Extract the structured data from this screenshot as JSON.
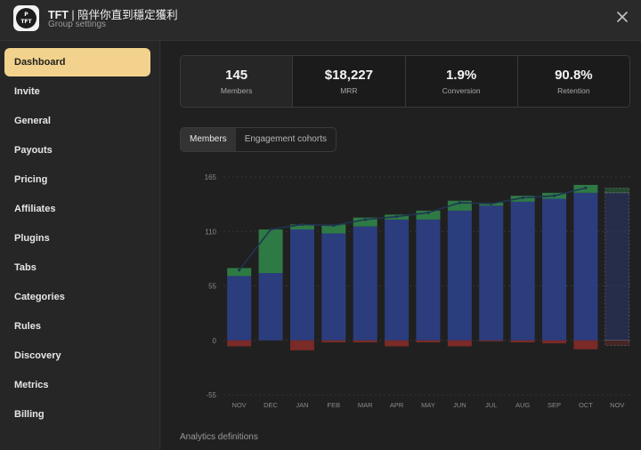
{
  "header": {
    "title": "TFT",
    "title_suffix": " | 陪伴你直到穩定獲利",
    "subtitle": "Group settings",
    "logo_text": [
      "P",
      "TFT"
    ]
  },
  "sidebar": {
    "items": [
      {
        "label": "Dashboard",
        "active": true
      },
      {
        "label": "Invite"
      },
      {
        "label": "General"
      },
      {
        "label": "Payouts"
      },
      {
        "label": "Pricing"
      },
      {
        "label": "Affiliates"
      },
      {
        "label": "Plugins"
      },
      {
        "label": "Tabs"
      },
      {
        "label": "Categories"
      },
      {
        "label": "Rules"
      },
      {
        "label": "Discovery"
      },
      {
        "label": "Metrics"
      },
      {
        "label": "Billing"
      }
    ]
  },
  "stats": [
    {
      "value": "145",
      "label": "Members"
    },
    {
      "value": "$18,227",
      "label": "MRR"
    },
    {
      "value": "1.9%",
      "label": "Conversion"
    },
    {
      "value": "90.8%",
      "label": "Retention"
    }
  ],
  "tabs": [
    {
      "label": "Members",
      "active": true
    },
    {
      "label": "Engagement cohorts"
    }
  ],
  "footer": {
    "definitions_link": "Analytics definitions"
  },
  "colors": {
    "retained": "#2c3d7e",
    "new": "#2e7a45",
    "churned": "#7a2a27",
    "active_nav": "#f2d28c"
  },
  "chart_data": {
    "type": "bar",
    "stacked": true,
    "categories": [
      "NOV",
      "DEC",
      "JAN",
      "FEB",
      "MAR",
      "APR",
      "MAY",
      "JUN",
      "JUL",
      "AUG",
      "SEP",
      "OCT",
      "NOV"
    ],
    "ylim": [
      -55,
      165
    ],
    "yticks": [
      165,
      110,
      55,
      0,
      -55
    ],
    "grid": true,
    "series": [
      {
        "key": "retained",
        "values": [
          65,
          68,
          112,
          108,
          115,
          122,
          122,
          131,
          136,
          140,
          143,
          149,
          149
        ]
      },
      {
        "key": "new",
        "values": [
          8,
          44,
          5,
          9,
          9,
          5,
          9,
          10,
          3,
          6,
          6,
          8,
          5
        ]
      },
      {
        "key": "churned",
        "values": [
          -6,
          0,
          -10,
          -2,
          -2,
          -6,
          -2,
          -6,
          -1,
          -2,
          -3,
          -9,
          -5
        ]
      }
    ],
    "total_line": [
      71,
      112,
      117,
      116,
      122,
      125,
      129,
      139,
      138,
      144,
      146,
      154
    ],
    "projected_last": true
  }
}
